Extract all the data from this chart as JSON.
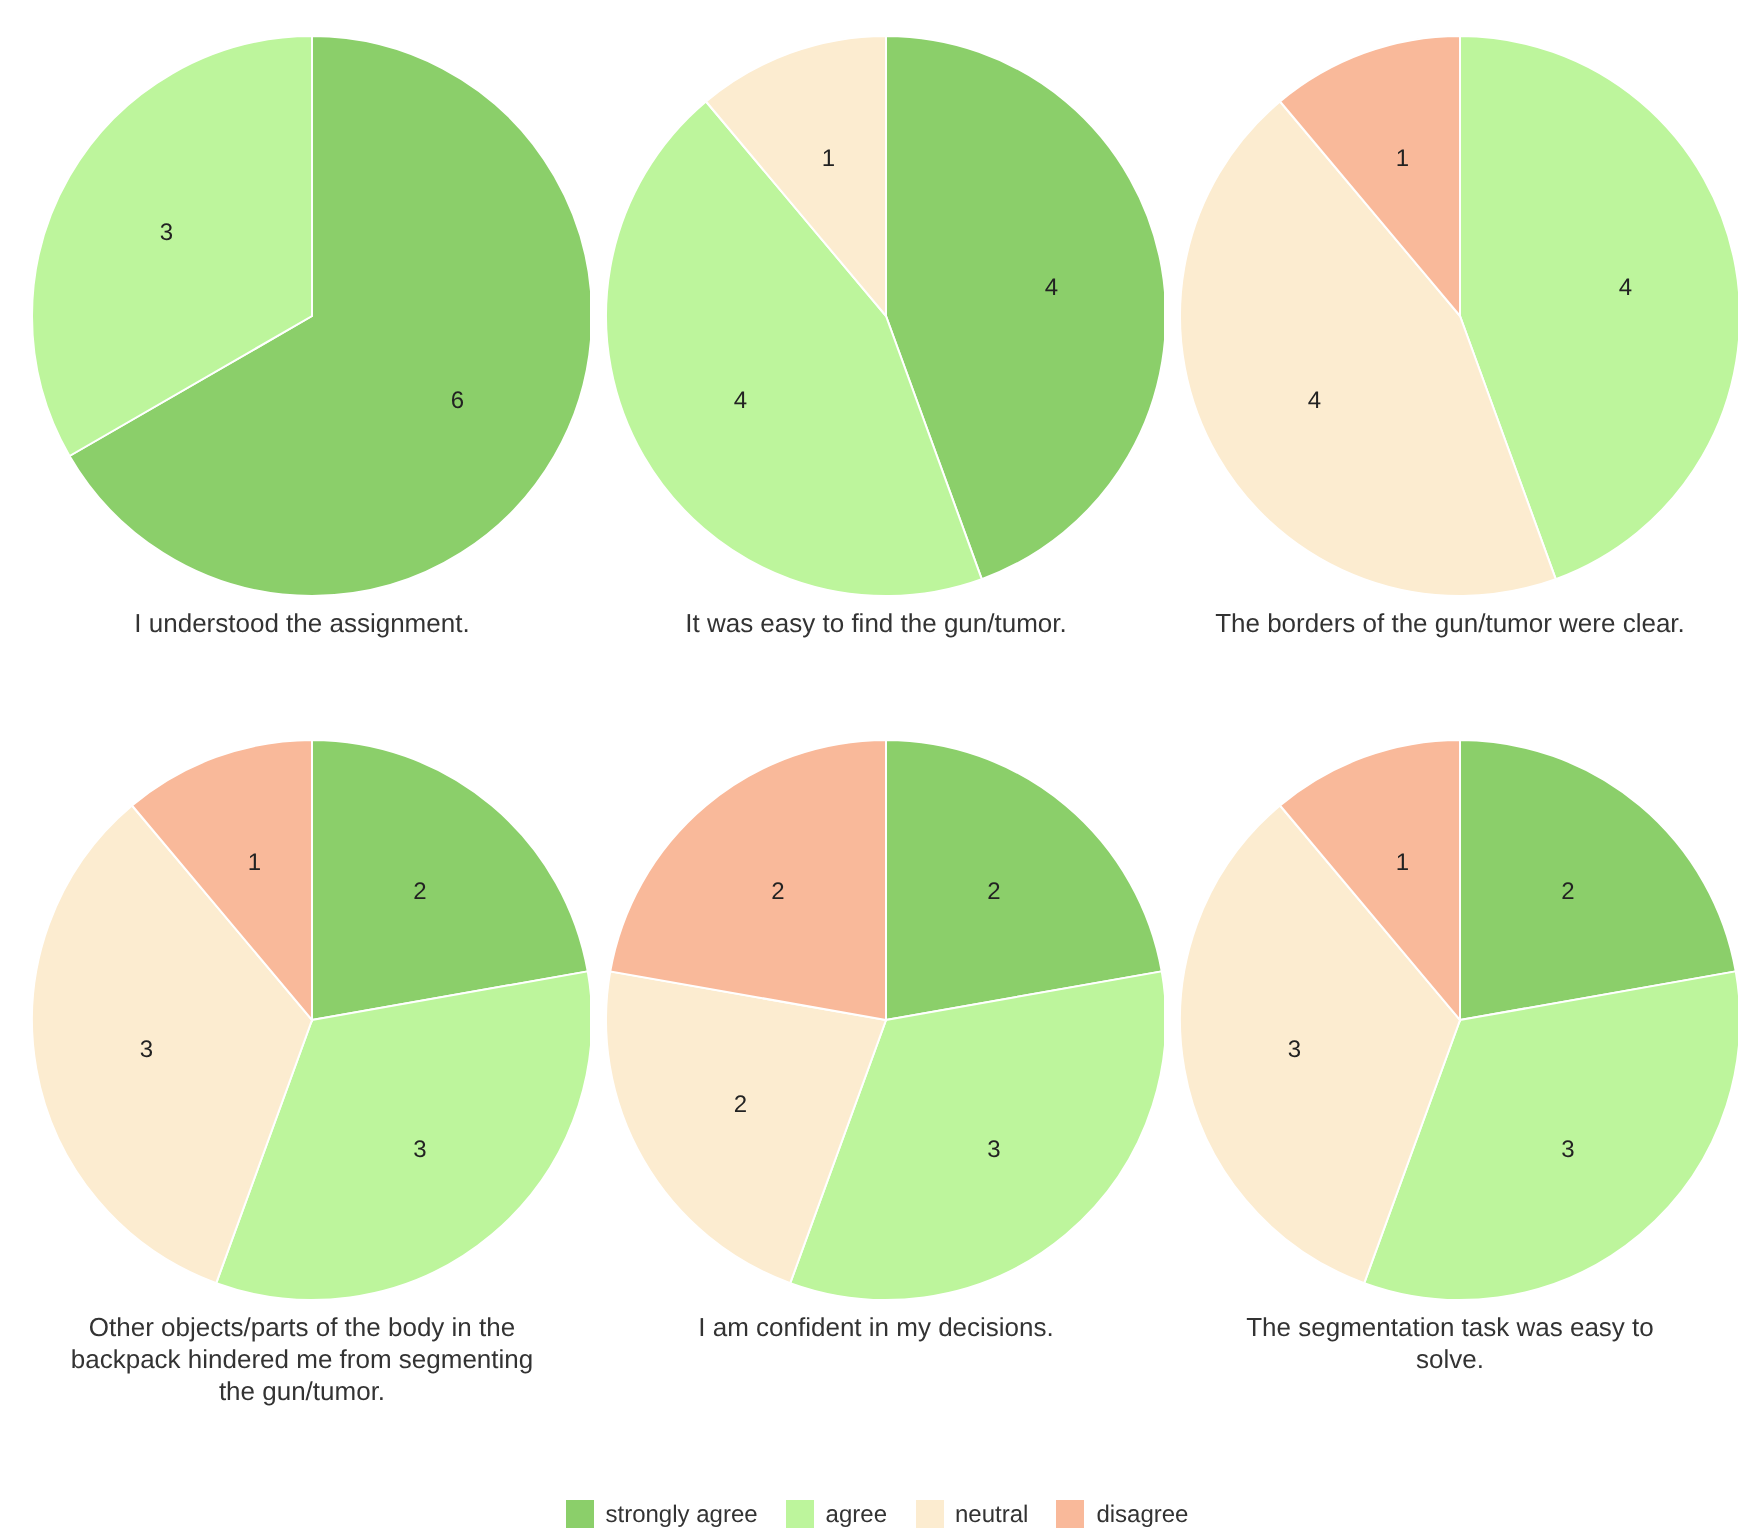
{
  "chart_data": [
    {
      "type": "pie",
      "title": "I understood the assignment.",
      "categories": [
        null,
        null
      ],
      "values": [
        6,
        3
      ],
      "colors": [
        "#8bcf6a",
        "#bdf59c"
      ],
      "data_labels": true
    },
    {
      "type": "pie",
      "title": "It was easy to find the gun/tumor.",
      "categories": [
        null,
        null,
        null
      ],
      "values": [
        4,
        4,
        1
      ],
      "colors": [
        "#8bcf6a",
        "#bdf59c",
        "#fcecd0"
      ],
      "data_labels": true
    },
    {
      "type": "pie",
      "title": "The borders of the gun/tumor were clear.",
      "categories": [
        null,
        null,
        null
      ],
      "values": [
        4,
        4,
        1
      ],
      "colors": [
        "#bdf59c",
        "#fcecd0",
        "#f9b99a"
      ],
      "data_labels": true
    },
    {
      "type": "pie",
      "title": "Other objects/parts of the body in the backpack hindered me from segmenting the gun/tumor.",
      "categories": [
        null,
        null,
        null,
        null
      ],
      "values": [
        2,
        3,
        3,
        1
      ],
      "colors": [
        "#8bcf6a",
        "#bdf59c",
        "#fcecd0",
        "#f9b99a"
      ],
      "data_labels": true
    },
    {
      "type": "pie",
      "title": "I am confident in my decisions.",
      "categories": [
        null,
        null,
        null,
        null
      ],
      "values": [
        2,
        3,
        2,
        2
      ],
      "colors": [
        "#8bcf6a",
        "#bdf59c",
        "#fcecd0",
        "#f9b99a"
      ],
      "data_labels": true
    },
    {
      "type": "pie",
      "title": "The segmentation task was easy to solve.",
      "categories": [
        "strongly agree",
        "agree",
        "neutral",
        "disagree"
      ],
      "values": [
        2,
        3,
        3,
        1
      ],
      "colors": [
        "#8bcf6a",
        "#bdf59c",
        "#fcecd0",
        "#f9b99a"
      ],
      "data_labels": true,
      "legend": "bottom"
    }
  ]
}
